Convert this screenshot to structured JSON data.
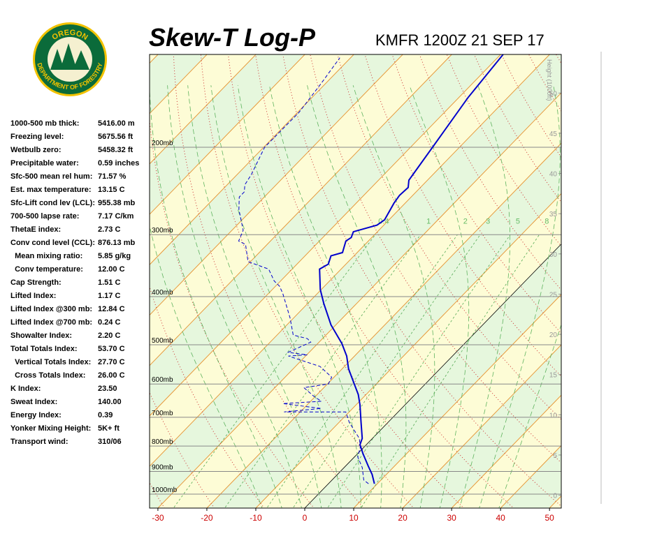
{
  "logo": {
    "top": "OREGON",
    "bottom": "DEPARTMENT OF FORESTRY"
  },
  "stats": [
    [
      "1000-500 mb thick:",
      "5416.00 m"
    ],
    [
      "Freezing level:",
      "5675.56 ft"
    ],
    [
      "Wetbulb zero:",
      "5458.32 ft"
    ],
    [
      "Precipitable water:",
      "0.59 inches"
    ],
    [
      "Sfc-500 mean rel hum:",
      "71.57 %"
    ],
    [
      "Est. max temperature:",
      "13.15 C"
    ],
    [
      "Sfc-Lift cond lev (LCL):",
      "955.38 mb"
    ],
    [
      "700-500 lapse rate:",
      "7.17 C/km"
    ],
    [
      "ThetaE index:",
      "2.73 C"
    ],
    [
      "Conv cond level (CCL):",
      "876.13 mb"
    ],
    [
      "  Mean mixing ratio:",
      "5.85 g/kg"
    ],
    [
      "  Conv temperature:",
      "12.00 C"
    ],
    [
      "Cap Strength:",
      "1.51 C"
    ],
    [
      "Lifted Index:",
      "1.17 C"
    ],
    [
      "Lifted Index @300 mb:",
      "12.84 C"
    ],
    [
      "Lifted Index @700 mb:",
      "0.24 C"
    ],
    [
      "Showalter Index:",
      "2.20 C"
    ],
    [
      "Total Totals Index:",
      "53.70 C"
    ],
    [
      "  Vertical Totals Index:",
      "27.70 C"
    ],
    [
      "  Cross Totals Index:",
      "26.00 C"
    ],
    [
      "K Index:",
      "23.50"
    ],
    [
      "Sweat Index:",
      "140.00"
    ],
    [
      "Energy Index:",
      "0.39"
    ],
    [
      "Yonker Mixing Height:",
      "5K+ ft"
    ],
    [
      "Transport wind:",
      "310/06"
    ]
  ],
  "chart_data": {
    "type": "skewt",
    "title": "Skew-T Log-P",
    "subtitle": "KMFR 1200Z 21 SEP 17",
    "xlim": [
      -31.7,
      52.4
    ],
    "xticks": [
      -30,
      -20,
      -10,
      0,
      10,
      20,
      30,
      40,
      50
    ],
    "ylim": [
      1067,
      130
    ],
    "log_y": true,
    "yticks": [
      {
        "value": 1000,
        "label": "1000mb"
      },
      {
        "value": 900,
        "label": "900mb"
      },
      {
        "value": 800,
        "label": "800mb"
      },
      {
        "value": 700,
        "label": "700mb"
      },
      {
        "value": 600,
        "label": "600mb"
      },
      {
        "value": 500,
        "label": "500mb"
      },
      {
        "value": 400,
        "label": "400mb"
      },
      {
        "value": 300,
        "label": "300mb"
      },
      {
        "value": 200,
        "label": "200mb"
      }
    ],
    "y2label": "Height (1000ft)",
    "y2lim": [
      -1.6,
      54.8
    ],
    "y2ticks": [
      0,
      5,
      10,
      15,
      20,
      25,
      30,
      35,
      40,
      45,
      50
    ],
    "mixing_ratios": [
      0.4,
      1,
      2,
      3,
      5,
      8
    ],
    "series": [
      {
        "color": "#0000cc",
        "style": "solid",
        "pressure": [
          953,
          913,
          879,
          829,
          795,
          772,
          717,
          661,
          630,
          596,
          559,
          527,
          497,
          456,
          413,
          387,
          352,
          344,
          331,
          326,
          309,
          304,
          296,
          287,
          280,
          259,
          250,
          241,
          233,
          200,
          159,
          130
        ],
        "values": [
          9.4,
          7.1,
          4.7,
          1.1,
          -1.3,
          -2.1,
          -5.5,
          -9.2,
          -11.6,
          -14.9,
          -18.7,
          -21.6,
          -25.1,
          -31.0,
          -36.7,
          -40.2,
          -44.4,
          -43.6,
          -44.7,
          -43.0,
          -44.6,
          -44.2,
          -44.9,
          -41.4,
          -40.9,
          -42.3,
          -42.7,
          -42.5,
          -43.8,
          -45.5,
          -48.1,
          -49.5
        ]
      },
      {
        "color": "#0000cc",
        "style": "dashed",
        "pressure": [
          953,
          937,
          884,
          842,
          803,
          772,
          717,
          683,
          683,
          683,
          672,
          657,
          650,
          636,
          610,
          600,
          581,
          553,
          527,
          524,
          518,
          494,
          486,
          478,
          441,
          394,
          381,
          372,
          352,
          340,
          314,
          309,
          294,
          267,
          252,
          246,
          238,
          227,
          200,
          170,
          149,
          132
        ],
        "values": [
          8.2,
          6.5,
          3.7,
          0.7,
          -0.8,
          -2.7,
          -7.9,
          -10.7,
          -16.4,
          -23.3,
          -16.4,
          -25.2,
          -17.8,
          -20.2,
          -24.1,
          -19.8,
          -20.5,
          -25.0,
          -33.5,
          -29.9,
          -34.3,
          -31.7,
          -33.1,
          -36.7,
          -40.8,
          -47.1,
          -49.2,
          -51.3,
          -54.8,
          -60.5,
          -64.4,
          -66.5,
          -67.7,
          -72.7,
          -75.1,
          -75.1,
          -76.4,
          -77.1,
          -79.8,
          -79.7,
          -80.9,
          -82.2
        ]
      }
    ]
  }
}
